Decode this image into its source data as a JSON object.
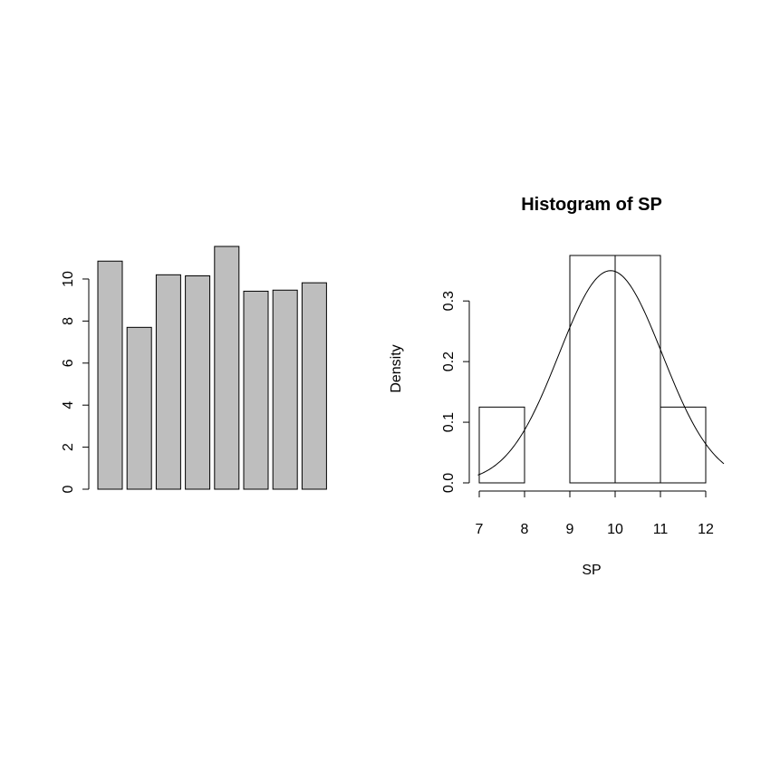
{
  "chart_data": [
    {
      "type": "bar",
      "title": "",
      "xlabel": "",
      "ylabel": "",
      "values": [
        10.85,
        7.7,
        10.2,
        10.15,
        11.55,
        9.42,
        9.47,
        9.82
      ],
      "bar_color": "#bebebe",
      "ylim": [
        0,
        11.55
      ],
      "yticks": [
        0,
        2,
        4,
        6,
        8,
        10
      ],
      "ytick_labels": [
        "0",
        "2",
        "4",
        "6",
        "8",
        "10"
      ]
    },
    {
      "type": "bar",
      "subtype": "histogram",
      "title": "Histogram of SP",
      "xlabel": "SP",
      "ylabel": "Density",
      "bins": [
        {
          "x0": 7,
          "x1": 8,
          "density": 0.125
        },
        {
          "x0": 8,
          "x1": 9,
          "density": 0.0
        },
        {
          "x0": 9,
          "x1": 10,
          "density": 0.375
        },
        {
          "x0": 10,
          "x1": 11,
          "density": 0.375
        },
        {
          "x0": 11,
          "x1": 12,
          "density": 0.125
        }
      ],
      "density_curve": {
        "type": "normal",
        "mean": 9.9,
        "sd": 1.14
      },
      "xlim": [
        6.85,
        12.22
      ],
      "ylim": [
        0,
        0.375
      ],
      "xticks": [
        7,
        8,
        9,
        10,
        11,
        12
      ],
      "xtick_labels": [
        "7",
        "8",
        "9",
        "10",
        "11",
        "12"
      ],
      "yticks": [
        0,
        0.1,
        0.2,
        0.3
      ],
      "ytick_labels": [
        "0.0",
        "0.1",
        "0.2",
        "0.3"
      ]
    }
  ]
}
